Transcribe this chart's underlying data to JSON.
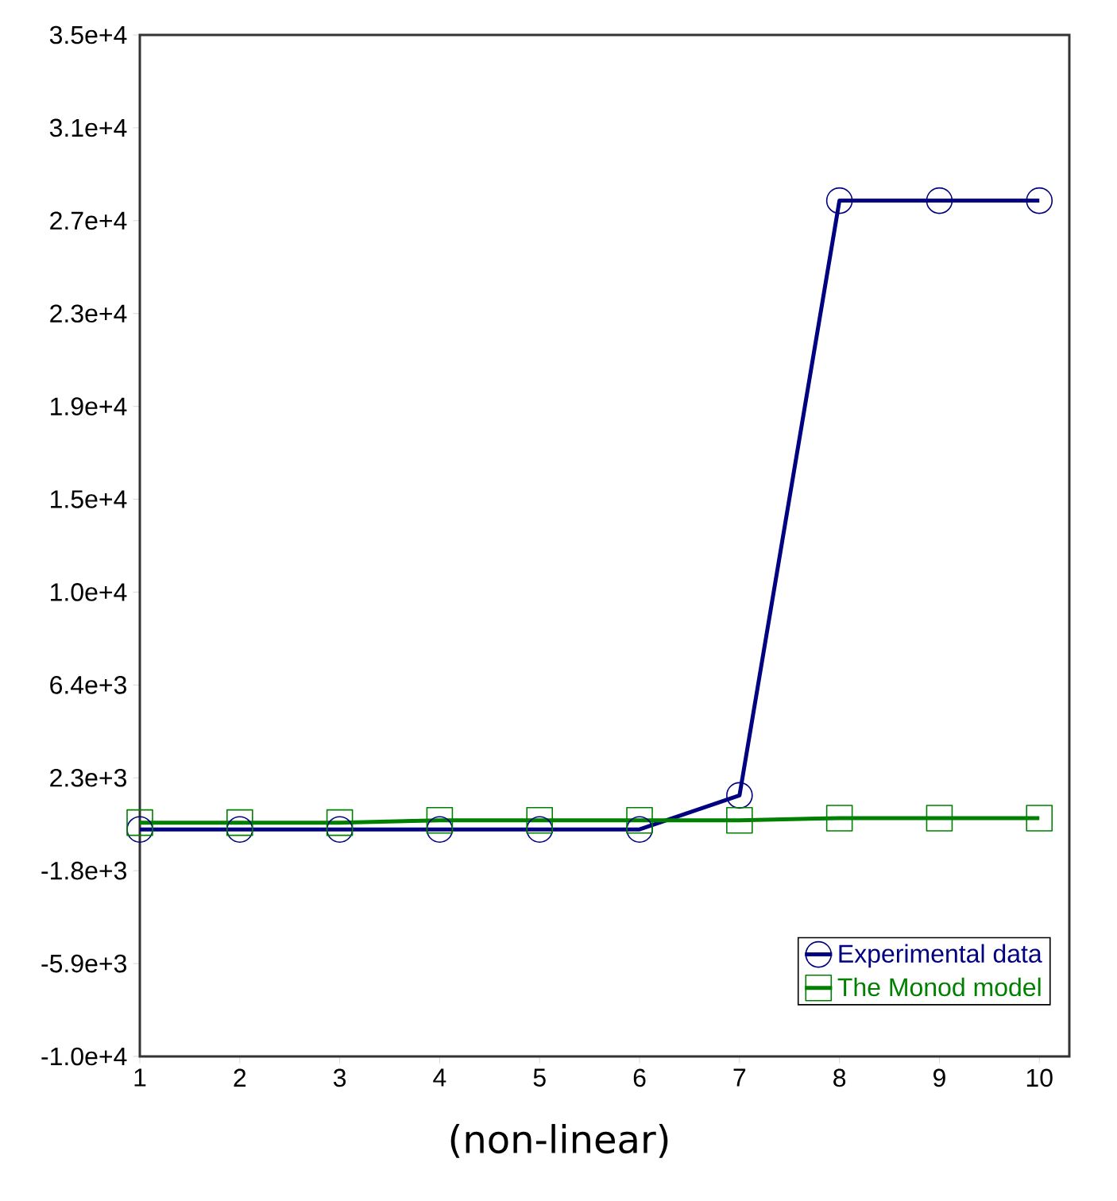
{
  "chart_data": {
    "type": "line",
    "x": [
      1,
      2,
      3,
      4,
      5,
      6,
      7,
      8,
      9,
      10
    ],
    "series": [
      {
        "name": "Experimental data",
        "color": "#000080",
        "marker": "circle",
        "values": [
          0,
          0,
          0,
          0,
          0,
          0,
          1500,
          27700,
          27700,
          27700
        ]
      },
      {
        "name": "The Monod model",
        "color": "#008000",
        "marker": "square",
        "values": [
          300,
          300,
          300,
          400,
          400,
          400,
          400,
          500,
          500,
          500
        ]
      }
    ],
    "xlim": [
      1,
      10.3
    ],
    "xticks": [
      1,
      2,
      3,
      4,
      5,
      6,
      7,
      8,
      9,
      10
    ],
    "ylim": [
      -10000,
      35000
    ],
    "yticks": [
      {
        "value": -10000,
        "label": "-1.0e+4"
      },
      {
        "value": -5909,
        "label": "-5.9e+3"
      },
      {
        "value": -1818,
        "label": "-1.8e+3"
      },
      {
        "value": 2273,
        "label": "2.3e+3"
      },
      {
        "value": 6364,
        "label": "6.4e+3"
      },
      {
        "value": 10455,
        "label": "1.0e+4"
      },
      {
        "value": 14545,
        "label": "1.5e+4"
      },
      {
        "value": 18636,
        "label": "1.9e+4"
      },
      {
        "value": 22727,
        "label": "2.3e+4"
      },
      {
        "value": 26818,
        "label": "2.7e+4"
      },
      {
        "value": 30909,
        "label": "3.1e+4"
      },
      {
        "value": 35000,
        "label": "3.5e+4"
      }
    ],
    "grid": false,
    "legend": "bottom right",
    "line_style": "solid",
    "annotations": [
      "(non-linear)"
    ]
  }
}
